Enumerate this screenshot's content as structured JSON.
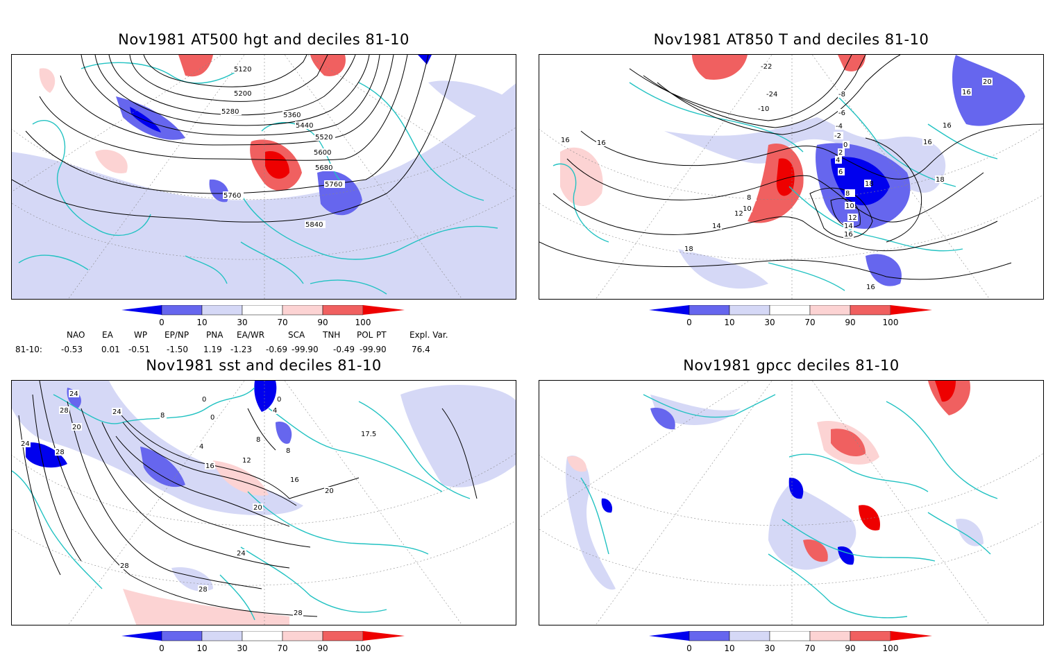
{
  "panels": [
    {
      "title": "Nov1981 AT500 hgt and deciles 81-10",
      "contour_labels": [
        "5120",
        "5200",
        "5280",
        "5360",
        "5440",
        "5520",
        "5600",
        "5680",
        "5760",
        "5760",
        "5840"
      ]
    },
    {
      "title": "Nov1981 AT850 T and deciles 81-10",
      "contour_labels": [
        "-22",
        "-24",
        "-10",
        "-8",
        "-6",
        "-4",
        "-2",
        "0",
        "2",
        "4",
        "6",
        "8",
        "10",
        "12",
        "14",
        "16",
        "18",
        "20",
        "16",
        "16",
        "16",
        "18",
        "8",
        "10",
        "12",
        "14",
        "16",
        "16",
        "18",
        "16",
        "16"
      ]
    },
    {
      "title": "Nov1981 sst and deciles 81-10",
      "contour_labels": [
        "0",
        "0",
        "8",
        "4",
        "0",
        "4",
        "8",
        "12",
        "16",
        "8",
        "16",
        "20",
        "20",
        "24",
        "28",
        "28",
        "28",
        "24",
        "28",
        "24",
        "28",
        "24",
        "20",
        "17.5"
      ]
    },
    {
      "title": "Nov1981 gpcc deciles 81-10",
      "contour_labels": []
    }
  ],
  "colorbar": {
    "ticks": [
      "0",
      "10",
      "30",
      "70",
      "90",
      "100"
    ],
    "colors": [
      "#0000ee",
      "#6666ee",
      "#d5d8f6",
      "#ffffff",
      "#fcd3d3",
      "#f06060",
      "#ee0000"
    ]
  },
  "indices": {
    "headers": [
      "NAO",
      "EA",
      "WP",
      "EP/NP",
      "PNA",
      "EA/WR",
      "SCA",
      "TNH",
      "POL",
      "PT",
      "Expl. Var."
    ],
    "row_label": "81-10:",
    "values": [
      "-0.53",
      "0.01",
      "-0.51",
      "-1.50",
      "1.19",
      "-1.23",
      "-0.69",
      "-99.90",
      "-0.49",
      "-99.90",
      "76.4"
    ]
  },
  "colors": {
    "coast": "#22c2c2",
    "grid": "#888888",
    "contour": "#000000"
  }
}
